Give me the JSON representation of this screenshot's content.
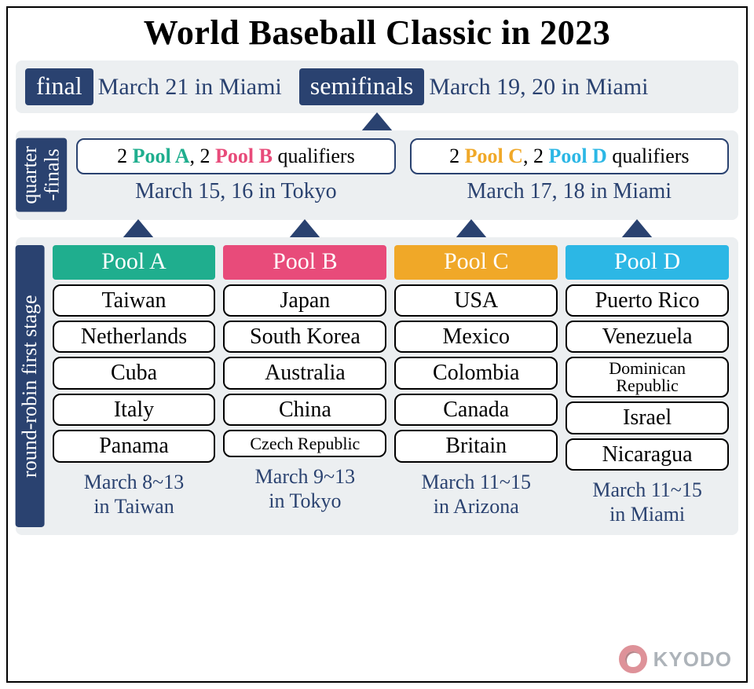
{
  "title": "World Baseball Classic in 2023",
  "colors": {
    "navy": "#2a4270",
    "panel": "#eceff1",
    "poolA": "#1fae8e",
    "poolB": "#e84b7a",
    "poolC": "#f0a828",
    "poolD": "#2cb7e5",
    "arrow": "#2a4270"
  },
  "finals": {
    "final_tag": "final",
    "final_text": "March 21 in Miami",
    "semi_tag": "semifinals",
    "semi_text": "March 19, 20 in Miami"
  },
  "quarterfinals": {
    "label": "quarter\n-finals",
    "left": {
      "pill_prefix": "2 ",
      "pill_a": "Pool A",
      "pill_mid": ", 2 ",
      "pill_b": "Pool B",
      "pill_suffix": " qualifiers",
      "date": "March 15, 16 in Tokyo"
    },
    "right": {
      "pill_prefix": "2 ",
      "pill_c": "Pool C",
      "pill_mid": ", 2 ",
      "pill_d": "Pool D",
      "pill_suffix": " qualifiers",
      "date": "March 17, 18 in Miami"
    }
  },
  "firststage": {
    "label": "round-robin first stage",
    "pools": [
      {
        "name": "Pool A",
        "color": "#1fae8e",
        "teams": [
          "Taiwan",
          "Netherlands",
          "Cuba",
          "Italy",
          "Panama"
        ],
        "date_line1": "March 8~13",
        "date_line2": "in Taiwan"
      },
      {
        "name": "Pool B",
        "color": "#e84b7a",
        "teams": [
          "Japan",
          "South Korea",
          "Australia",
          "China",
          "Czech Republic"
        ],
        "date_line1": "March 9~13",
        "date_line2": "in Tokyo"
      },
      {
        "name": "Pool C",
        "color": "#f0a828",
        "teams": [
          "USA",
          "Mexico",
          "Colombia",
          "Canada",
          "Britain"
        ],
        "date_line1": "March 11~15",
        "date_line2": "in Arizona"
      },
      {
        "name": "Pool D",
        "color": "#2cb7e5",
        "teams": [
          "Puerto Rico",
          "Venezuela",
          "Dominican\nRepublic",
          "Israel",
          "Nicaragua"
        ],
        "date_line1": "March 11~15",
        "date_line2": "in Miami"
      }
    ]
  },
  "credit": "KYODO"
}
